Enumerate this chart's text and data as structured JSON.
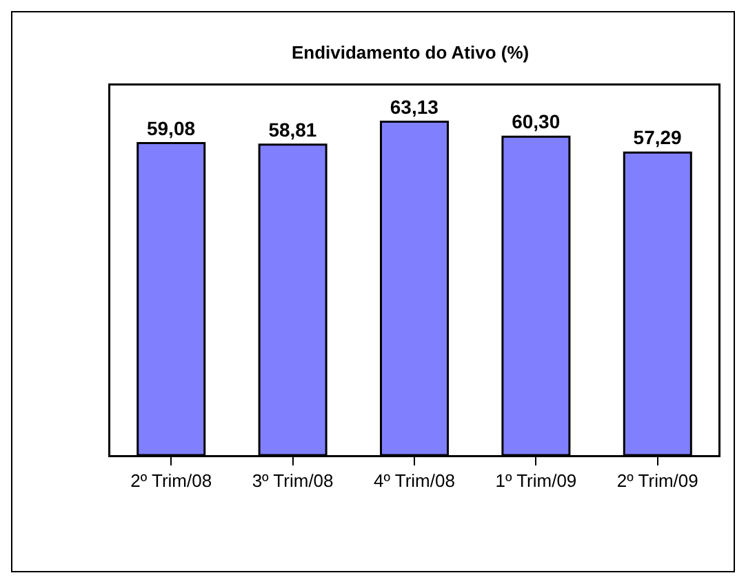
{
  "chart_data": {
    "type": "bar",
    "title": "Endividamento do Ativo (%)",
    "categories": [
      "2º Trim/08",
      "3º Trim/08",
      "4º Trim/08",
      "1º Trim/09",
      "2º Trim/09"
    ],
    "values": [
      59.08,
      58.81,
      63.13,
      60.3,
      57.29
    ],
    "value_labels": [
      "59,08",
      "58,81",
      "63,13",
      "60,30",
      "57,29"
    ],
    "color": "#8080ff",
    "ylim": [
      0,
      70
    ],
    "tick_labels": "x",
    "grid": false
  }
}
